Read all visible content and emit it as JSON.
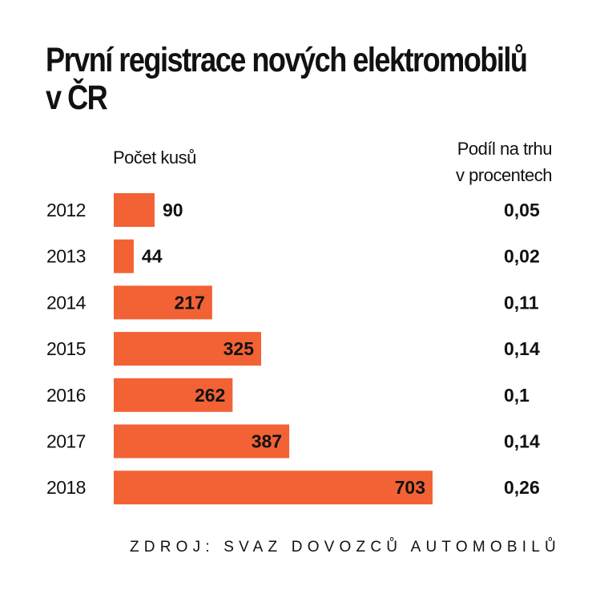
{
  "title_lines": [
    "První registrace nových elektromobilů",
    "v ČR"
  ],
  "left_header": "Počet kusů",
  "right_header_lines": [
    "Podíl na trhu",
    "v procentech"
  ],
  "source": "ZDROJ: SVAZ DOVOZCŮ AUTOMOBILŮ",
  "colors": {
    "bar": "#f26235",
    "text": "#111111"
  },
  "chart_data": {
    "type": "bar",
    "orientation": "horizontal",
    "categories": [
      "2012",
      "2013",
      "2014",
      "2015",
      "2016",
      "2017",
      "2018"
    ],
    "series": [
      {
        "name": "Počet kusů",
        "values": [
          90,
          44,
          217,
          325,
          262,
          387,
          703
        ]
      },
      {
        "name": "Podíl na trhu v procentech",
        "values": [
          0.05,
          0.02,
          0.11,
          0.14,
          0.1,
          0.14,
          0.26
        ]
      }
    ],
    "value_labels": [
      "90",
      "44",
      "217",
      "325",
      "262",
      "387",
      "703"
    ],
    "share_labels": [
      "0,05",
      "0,02",
      "0,11",
      "0,14",
      "0,1",
      "0,14",
      "0,26"
    ],
    "xlim": [
      0,
      703
    ],
    "grid": false
  }
}
